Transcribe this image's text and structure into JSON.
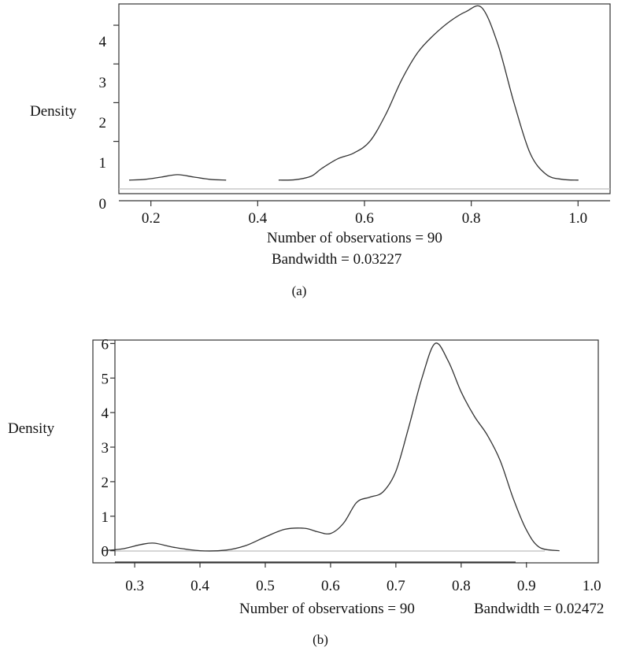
{
  "chart_data": [
    {
      "type": "line",
      "ylabel": "Density",
      "xticks": [
        "0.2",
        "0.4",
        "0.6",
        "0.8",
        "1.0"
      ],
      "yticks": [
        "0",
        "1",
        "2",
        "3",
        "4"
      ],
      "xlim": [
        0.14,
        1.06
      ],
      "ylim": [
        -0.35,
        4.55
      ],
      "grid": false,
      "annotations": [
        "Number of observations = 90",
        "Bandwidth = 0.03227"
      ],
      "caption": "(a)",
      "series": [
        {
          "x": [
            0.16,
            0.19,
            0.22,
            0.25,
            0.28,
            0.31,
            0.34,
            0.44,
            0.47,
            0.5,
            0.52,
            0.55,
            0.58,
            0.61,
            0.64,
            0.67,
            0.7,
            0.73,
            0.76,
            0.79,
            0.82,
            0.85,
            0.88,
            0.91,
            0.94,
            0.97,
            1.0
          ],
          "y": [
            0.0,
            0.02,
            0.08,
            0.14,
            0.08,
            0.02,
            0.0,
            0.0,
            0.01,
            0.1,
            0.3,
            0.55,
            0.7,
            1.0,
            1.7,
            2.6,
            3.3,
            3.75,
            4.1,
            4.35,
            4.45,
            3.5,
            2.0,
            0.7,
            0.15,
            0.02,
            0.0
          ]
        }
      ]
    },
    {
      "type": "line",
      "ylabel": "Density",
      "xticks": [
        "0.3",
        "0.4",
        "0.5",
        "0.6",
        "0.7",
        "0.8",
        "0.9",
        "1.0"
      ],
      "yticks": [
        "0",
        "1",
        "2",
        "3",
        "4",
        "5",
        "6"
      ],
      "xlim": [
        0.236,
        1.01
      ],
      "ylim": [
        -0.35,
        6.1
      ],
      "grid": false,
      "annotations": [
        "Number of observations = 90",
        "Bandwidth = 0.02472"
      ],
      "caption": "(b)",
      "series": [
        {
          "x": [
            0.25,
            0.28,
            0.31,
            0.33,
            0.36,
            0.4,
            0.44,
            0.47,
            0.5,
            0.53,
            0.56,
            0.58,
            0.6,
            0.62,
            0.64,
            0.66,
            0.68,
            0.7,
            0.72,
            0.74,
            0.76,
            0.78,
            0.8,
            0.82,
            0.84,
            0.86,
            0.88,
            0.9,
            0.92,
            0.95
          ],
          "y": [
            0.0,
            0.05,
            0.18,
            0.22,
            0.1,
            0.0,
            0.02,
            0.15,
            0.4,
            0.62,
            0.65,
            0.55,
            0.5,
            0.8,
            1.4,
            1.55,
            1.7,
            2.3,
            3.6,
            5.0,
            6.0,
            5.5,
            4.6,
            3.9,
            3.35,
            2.6,
            1.5,
            0.6,
            0.1,
            0.0
          ]
        }
      ]
    }
  ]
}
